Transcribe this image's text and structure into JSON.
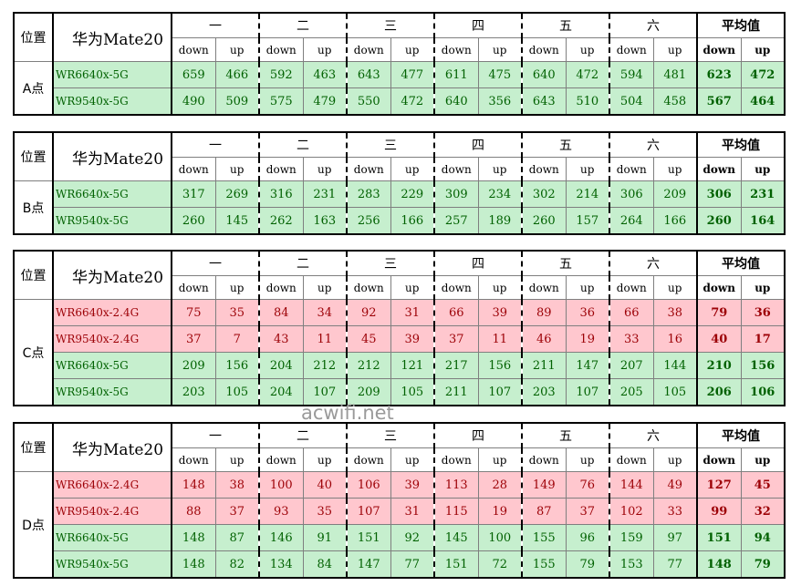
{
  "watermark": "acwifi.net",
  "headers": {
    "position": "位置",
    "phone": "华为Mate20",
    "days": [
      "一",
      "二",
      "三",
      "四",
      "五",
      "六"
    ],
    "average": "平均值",
    "down": "down",
    "up": "up"
  },
  "tables": [
    {
      "label": "A点",
      "rows": [
        {
          "model": "WR6640x-5G",
          "band": "5G",
          "values": [
            "659",
            "466",
            "592",
            "463",
            "643",
            "477",
            "611",
            "475",
            "640",
            "472",
            "594",
            "481"
          ],
          "avg_down": "623",
          "avg_up": "472"
        },
        {
          "model": "WR9540x-5G",
          "band": "5G",
          "values": [
            "490",
            "509",
            "575",
            "479",
            "550",
            "472",
            "640",
            "356",
            "643",
            "510",
            "504",
            "458"
          ],
          "avg_down": "567",
          "avg_up": "464"
        }
      ]
    },
    {
      "label": "B点",
      "rows": [
        {
          "model": "WR6640x-5G",
          "band": "5G",
          "values": [
            "317",
            "269",
            "316",
            "231",
            "283",
            "229",
            "309",
            "234",
            "302",
            "214",
            "306",
            "209"
          ],
          "avg_down": "306",
          "avg_up": "231"
        },
        {
          "model": "WR9540x-5G",
          "band": "5G",
          "values": [
            "260",
            "145",
            "262",
            "163",
            "256",
            "166",
            "257",
            "189",
            "260",
            "157",
            "264",
            "166"
          ],
          "avg_down": "260",
          "avg_up": "164"
        }
      ]
    },
    {
      "label": "C点",
      "rows": [
        {
          "model": "WR6640x-2.4G",
          "band": "2.4G",
          "values": [
            "75",
            "35",
            "84",
            "34",
            "92",
            "31",
            "66",
            "39",
            "89",
            "36",
            "66",
            "38"
          ],
          "avg_down": "79",
          "avg_up": "36"
        },
        {
          "model": "WR9540x-2.4G",
          "band": "2.4G",
          "values": [
            "37",
            "7",
            "43",
            "11",
            "45",
            "39",
            "37",
            "11",
            "46",
            "19",
            "33",
            "16"
          ],
          "avg_down": "40",
          "avg_up": "17"
        },
        {
          "model": "WR6640x-5G",
          "band": "5G",
          "values": [
            "209",
            "156",
            "204",
            "212",
            "212",
            "121",
            "217",
            "156",
            "211",
            "147",
            "207",
            "144"
          ],
          "avg_down": "210",
          "avg_up": "156"
        },
        {
          "model": "WR9540x-5G",
          "band": "5G",
          "values": [
            "203",
            "105",
            "204",
            "107",
            "209",
            "105",
            "211",
            "107",
            "203",
            "107",
            "205",
            "105"
          ],
          "avg_down": "206",
          "avg_up": "106"
        }
      ]
    },
    {
      "label": "D点",
      "rows": [
        {
          "model": "WR6640x-2.4G",
          "band": "2.4G",
          "values": [
            "148",
            "38",
            "100",
            "40",
            "106",
            "39",
            "113",
            "28",
            "149",
            "76",
            "144",
            "49"
          ],
          "avg_down": "127",
          "avg_up": "45"
        },
        {
          "model": "WR9540x-2.4G",
          "band": "2.4G",
          "values": [
            "88",
            "37",
            "93",
            "35",
            "107",
            "31",
            "115",
            "19",
            "87",
            "37",
            "102",
            "33"
          ],
          "avg_down": "99",
          "avg_up": "32"
        },
        {
          "model": "WR6640x-5G",
          "band": "5G",
          "values": [
            "148",
            "87",
            "146",
            "91",
            "151",
            "92",
            "145",
            "100",
            "155",
            "96",
            "159",
            "97"
          ],
          "avg_down": "151",
          "avg_up": "94"
        },
        {
          "model": "WR9540x-5G",
          "band": "5G",
          "values": [
            "148",
            "82",
            "134",
            "84",
            "147",
            "77",
            "151",
            "72",
            "155",
            "79",
            "153",
            "77"
          ],
          "avg_down": "148",
          "avg_up": "79"
        }
      ]
    }
  ],
  "colors": {
    "band_5g_bg": "#c6efce",
    "band_5g_text": "#006100",
    "band_24g_bg": "#ffc7ce",
    "band_24g_text": "#9c0006"
  }
}
